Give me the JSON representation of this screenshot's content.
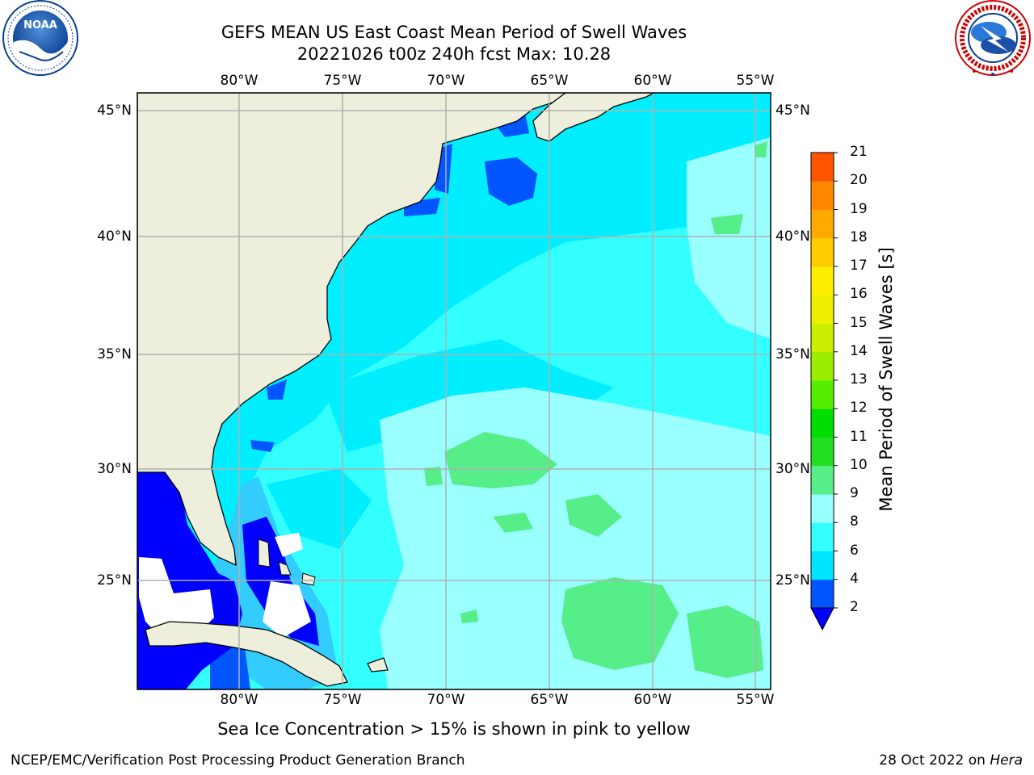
{
  "title": {
    "line1": "GEFS MEAN US East Coast Mean Period of Swell Waves",
    "line2": "20221026 t00z 240h fcst   Max: 10.28"
  },
  "map": {
    "lon_ticks": [
      "80°W",
      "75°W",
      "70°W",
      "65°W",
      "60°W",
      "55°W"
    ],
    "lat_ticks": [
      "45°N",
      "40°N",
      "35°N",
      "30°N",
      "25°N"
    ],
    "lon_values": [
      -80,
      -75,
      -70,
      -65,
      -60,
      -55
    ],
    "lat_values": [
      45,
      40,
      35,
      30,
      25
    ],
    "extent": {
      "lon_min": -85,
      "lon_max": -54.3,
      "lat_min": 20.4,
      "lat_max": 45.7
    },
    "colors": {
      "land": "#eeeedd",
      "gridline": "#b0b0b0"
    }
  },
  "colorbar": {
    "label": "Mean Period of Swell Waves [s]",
    "ticks": [
      "2",
      "4",
      "6",
      "8",
      "9",
      "10",
      "11",
      "12",
      "13",
      "14",
      "15",
      "16",
      "17",
      "18",
      "19",
      "20",
      "21"
    ],
    "colors": [
      "#0055ff",
      "#00e5ff",
      "#33ffff",
      "#99ffff",
      "#55ee88",
      "#22dd22",
      "#00dd00",
      "#55ee00",
      "#99ee00",
      "#ccee00",
      "#eeee00",
      "#ffee00",
      "#ffcc00",
      "#ffaa00",
      "#ff8800",
      "#ff5500",
      "#ff2200",
      "#ff0000"
    ],
    "under_color": "#0000ff"
  },
  "footnote": "Sea Ice Concentration > 15% is shown in pink to yellow",
  "credits": {
    "left": "NCEP/EMC/Verification Post Processing Product Generation Branch",
    "right_date": "28 Oct 2022 on ",
    "right_machine": "Hera"
  },
  "logos": {
    "left": "NOAA",
    "right": "NATIONAL WEATHER SERVICE"
  }
}
